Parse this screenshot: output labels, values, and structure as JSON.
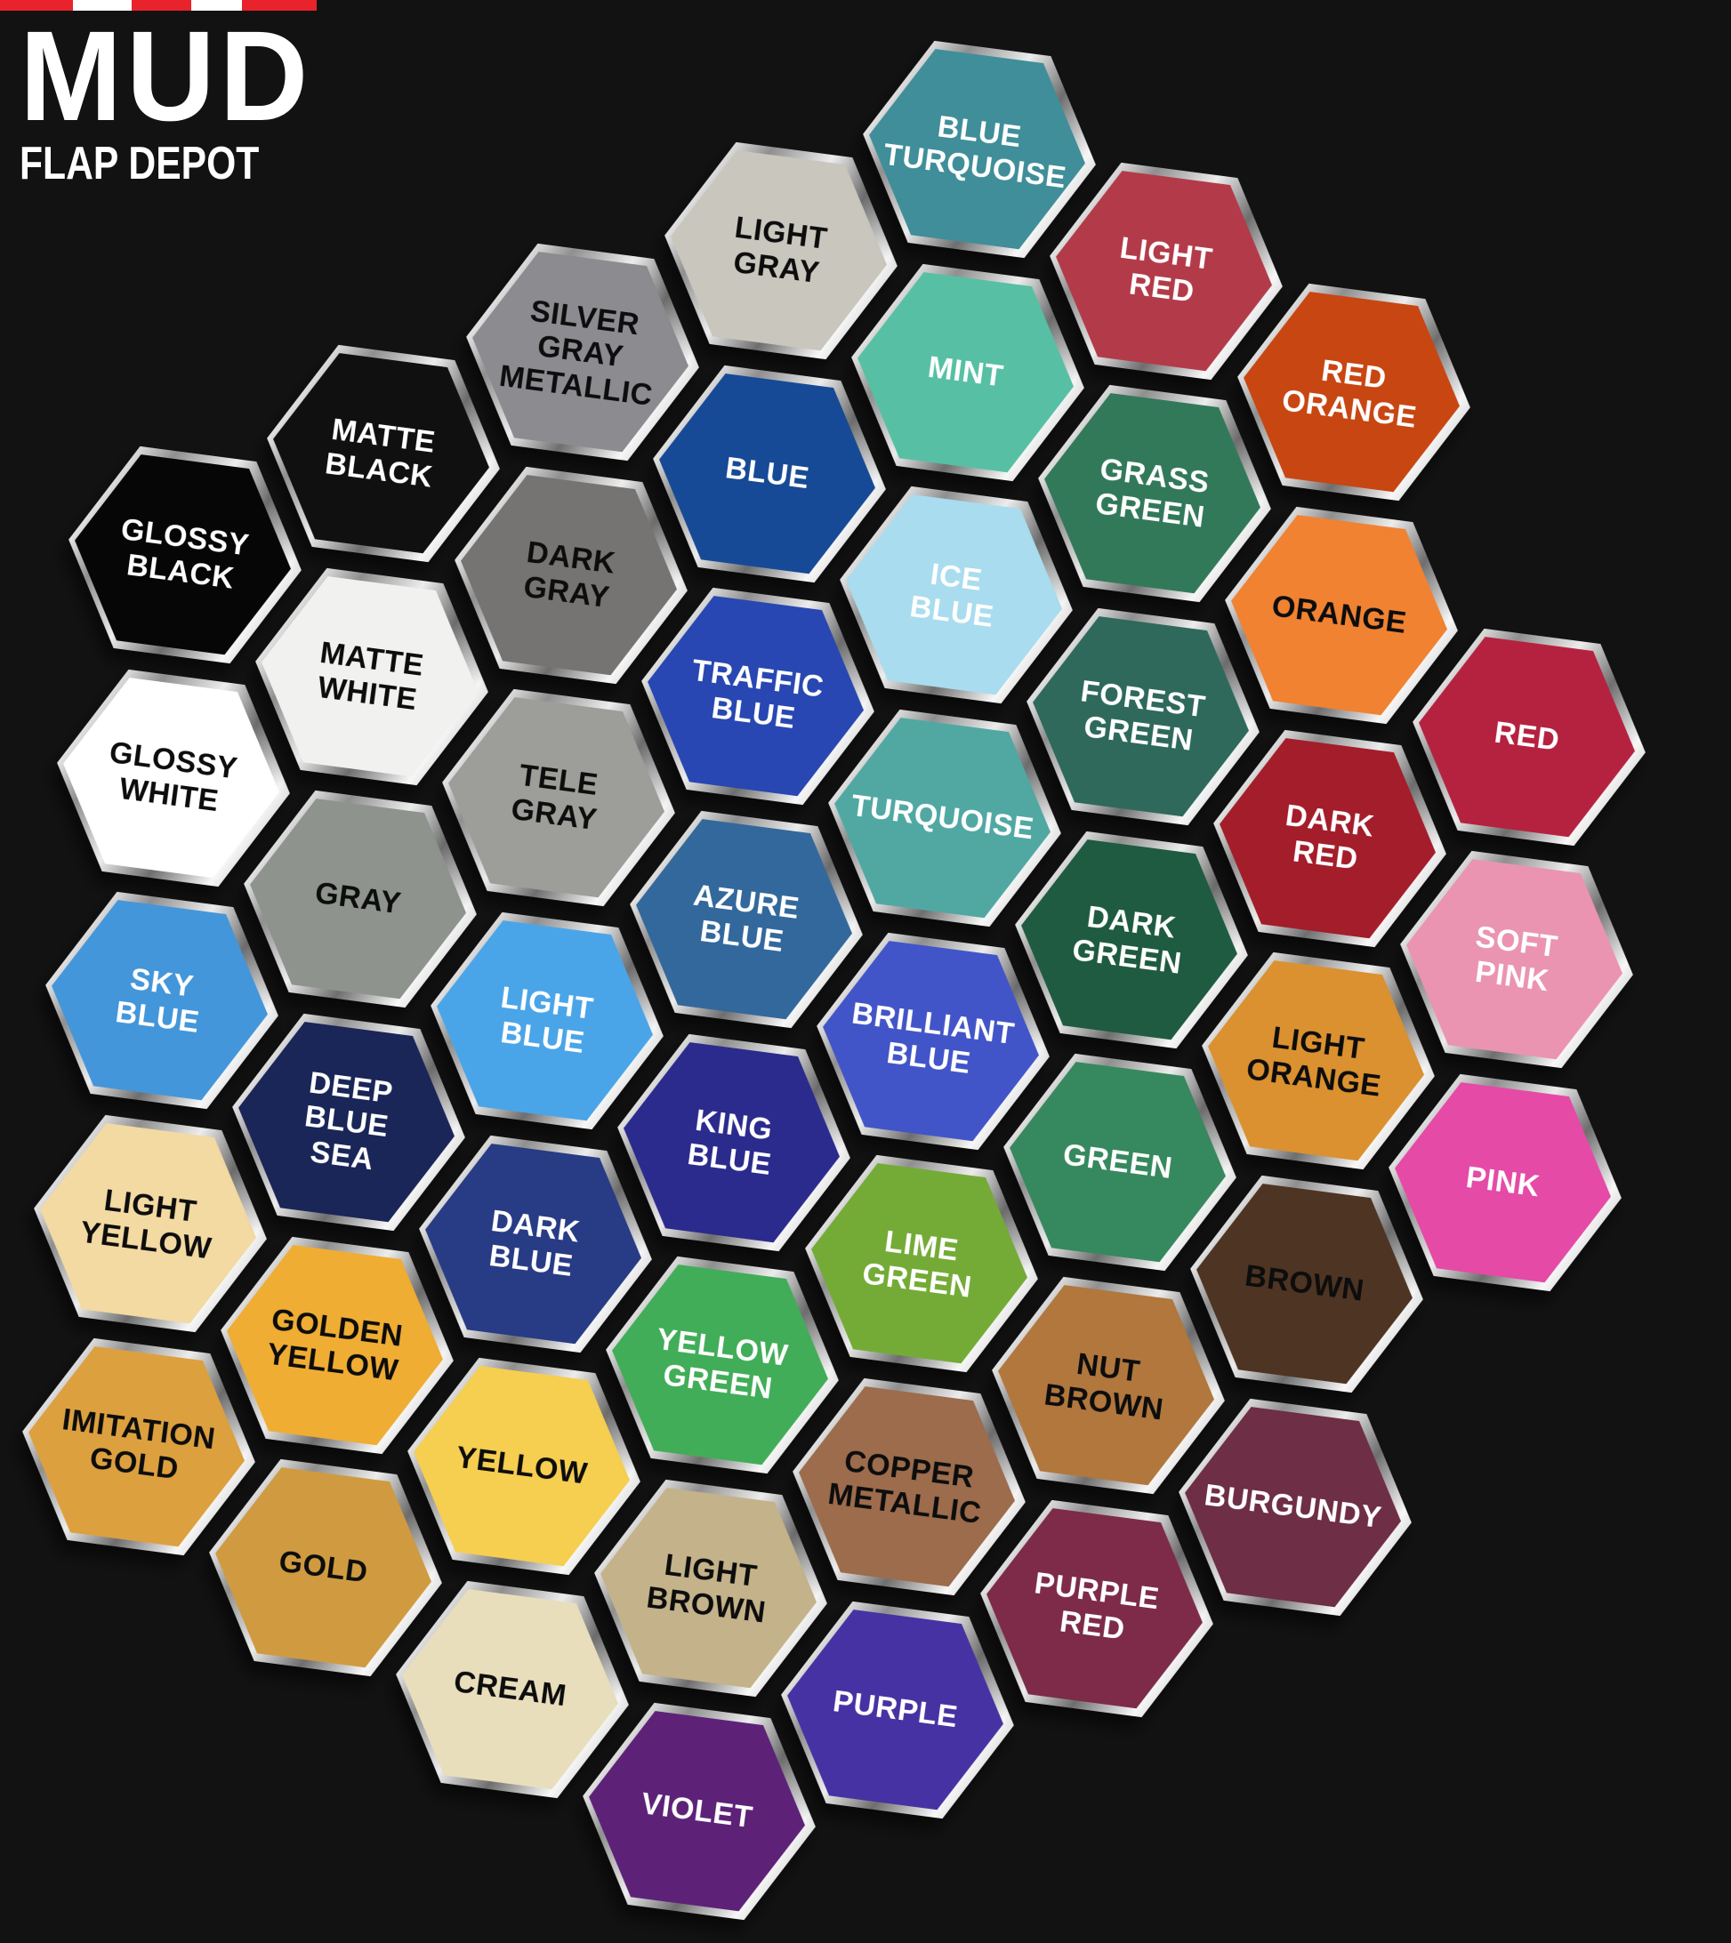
{
  "background": "#121212",
  "logo": {
    "title": "MUD",
    "subtitle": "FLAP DEPOT",
    "stripes": [
      {
        "color": "#e8232b",
        "width": 82
      },
      {
        "color": "#ffffff",
        "width": 66
      },
      {
        "color": "#e8232b",
        "width": 67
      },
      {
        "color": "#ffffff",
        "width": 57
      },
      {
        "color": "#e8232b",
        "width": 84
      }
    ]
  },
  "board": {
    "swatches": [
      {
        "name": "glossy-black",
        "label": "GLOSSY\nBLACK",
        "color": "#060606",
        "text_color": "#ffffff",
        "q": -3,
        "r": 3
      },
      {
        "name": "glossy-white",
        "label": "GLOSSY\nWHITE",
        "color": "#ffffff",
        "text_color": "#0d0d0d",
        "q": -3,
        "r": 4
      },
      {
        "name": "sky-blue",
        "label": "SKY\nBLUE",
        "color": "#4496da",
        "text_color": "#ffffff",
        "q": -3,
        "r": 5
      },
      {
        "name": "light-yellow",
        "label": "LIGHT\nYELLOW",
        "color": "#f3d9a2",
        "text_color": "#0d0d0d",
        "q": -3,
        "r": 6
      },
      {
        "name": "imitation-gold",
        "label": "IMITATION\nGOLD",
        "color": "#dda03f",
        "text_color": "#0d0d0d",
        "q": -3,
        "r": 7
      },
      {
        "name": "matte-black",
        "label": "MATTE\nBLACK",
        "color": "#101010",
        "text_color": "#ffffff",
        "q": -2,
        "r": 2
      },
      {
        "name": "matte-white",
        "label": "MATTE\nWHITE",
        "color": "#f1f1ef",
        "text_color": "#0d0d0d",
        "q": -2,
        "r": 3
      },
      {
        "name": "gray",
        "label": "GRAY",
        "color": "#8e938e",
        "text_color": "#0d0d0d",
        "q": -2,
        "r": 4
      },
      {
        "name": "deep-blue-sea",
        "label": "DEEP\nBLUE\nSEA",
        "color": "#1a2558",
        "text_color": "#ffffff",
        "q": -2,
        "r": 5
      },
      {
        "name": "golden-yellow",
        "label": "GOLDEN\nYELLOW",
        "color": "#f0ad33",
        "text_color": "#0d0d0d",
        "q": -2,
        "r": 6
      },
      {
        "name": "gold",
        "label": "GOLD",
        "color": "#d09b40",
        "text_color": "#0d0d0d",
        "q": -2,
        "r": 7
      },
      {
        "name": "silver-gray-metallic",
        "label": "SILVER\nGRAY\nMETALLIC",
        "color": "#8b8b90",
        "text_color": "#0d0d0d",
        "q": -1,
        "r": 1
      },
      {
        "name": "dark-gray",
        "label": "DARK\nGRAY",
        "color": "#757472",
        "text_color": "#0d0d0d",
        "q": -1,
        "r": 2
      },
      {
        "name": "tele-gray",
        "label": "TELE\nGRAY",
        "color": "#9d9d99",
        "text_color": "#0d0d0d",
        "q": -1,
        "r": 3
      },
      {
        "name": "light-blue",
        "label": "LIGHT\nBLUE",
        "color": "#4aa5e8",
        "text_color": "#ffffff",
        "q": -1,
        "r": 4
      },
      {
        "name": "dark-blue",
        "label": "DARK\nBLUE",
        "color": "#283b85",
        "text_color": "#ffffff",
        "q": -1,
        "r": 5
      },
      {
        "name": "yellow",
        "label": "YELLOW",
        "color": "#f6ce50",
        "text_color": "#0d0d0d",
        "q": -1,
        "r": 6
      },
      {
        "name": "cream",
        "label": "CREAM",
        "color": "#e9debc",
        "text_color": "#0d0d0d",
        "q": -1,
        "r": 7
      },
      {
        "name": "light-gray",
        "label": "LIGHT\nGRAY",
        "color": "#c9c6bd",
        "text_color": "#0d0d0d",
        "q": 0,
        "r": 0
      },
      {
        "name": "blue",
        "label": "BLUE",
        "color": "#174a96",
        "text_color": "#ffffff",
        "q": 0,
        "r": 1
      },
      {
        "name": "traffic-blue",
        "label": "TRAFFIC\nBLUE",
        "color": "#2847b2",
        "text_color": "#ffffff",
        "q": 0,
        "r": 2
      },
      {
        "name": "azure-blue",
        "label": "AZURE\nBLUE",
        "color": "#33689c",
        "text_color": "#ffffff",
        "q": 0,
        "r": 3
      },
      {
        "name": "king-blue",
        "label": "KING\nBLUE",
        "color": "#2b2b8e",
        "text_color": "#ffffff",
        "q": 0,
        "r": 4
      },
      {
        "name": "yellow-green",
        "label": "YELLOW\nGREEN",
        "color": "#42ad58",
        "text_color": "#ffffff",
        "q": 0,
        "r": 5
      },
      {
        "name": "light-brown",
        "label": "LIGHT\nBROWN",
        "color": "#c4b28a",
        "text_color": "#0d0d0d",
        "q": 0,
        "r": 6
      },
      {
        "name": "violet",
        "label": "VIOLET",
        "color": "#5d2278",
        "text_color": "#ffffff",
        "q": 0,
        "r": 7
      },
      {
        "name": "blue-turquoise",
        "label": "BLUE\nTURQUOISE",
        "color": "#3f8e99",
        "text_color": "#ffffff",
        "q": 1,
        "r": -1
      },
      {
        "name": "mint",
        "label": "MINT",
        "color": "#57c0a4",
        "text_color": "#ffffff",
        "q": 1,
        "r": 0
      },
      {
        "name": "ice-blue",
        "label": "ICE\nBLUE",
        "color": "#a9dcee",
        "text_color": "#ffffff",
        "q": 1,
        "r": 1
      },
      {
        "name": "turquoise",
        "label": "TURQUOISE",
        "color": "#51a8a3",
        "text_color": "#ffffff",
        "q": 1,
        "r": 2
      },
      {
        "name": "brilliant-blue",
        "label": "BRILLIANT\nBLUE",
        "color": "#4255c8",
        "text_color": "#ffffff",
        "q": 1,
        "r": 3
      },
      {
        "name": "lime-green",
        "label": "LIME\nGREEN",
        "color": "#74ab36",
        "text_color": "#ffffff",
        "q": 1,
        "r": 4
      },
      {
        "name": "copper-metallic",
        "label": "COPPER\nMETALLIC",
        "color": "#9c6c4c",
        "text_color": "#0d0d0d",
        "q": 1,
        "r": 5
      },
      {
        "name": "purple",
        "label": "PURPLE",
        "color": "#4732a4",
        "text_color": "#ffffff",
        "q": 1,
        "r": 6
      },
      {
        "name": "light-red",
        "label": "LIGHT\nRED",
        "color": "#b33b49",
        "text_color": "#ffffff",
        "q": 2,
        "r": -1
      },
      {
        "name": "grass-green",
        "label": "GRASS\nGREEN",
        "color": "#32795a",
        "text_color": "#ffffff",
        "q": 2,
        "r": 0
      },
      {
        "name": "forest-green",
        "label": "FOREST\nGREEN",
        "color": "#2e695c",
        "text_color": "#ffffff",
        "q": 2,
        "r": 1
      },
      {
        "name": "dark-green",
        "label": "DARK\nGREEN",
        "color": "#1e5b40",
        "text_color": "#ffffff",
        "q": 2,
        "r": 2
      },
      {
        "name": "green",
        "label": "GREEN",
        "color": "#36895e",
        "text_color": "#ffffff",
        "q": 2,
        "r": 3
      },
      {
        "name": "nut-brown",
        "label": "NUT\nBROWN",
        "color": "#b1773d",
        "text_color": "#0d0d0d",
        "q": 2,
        "r": 4
      },
      {
        "name": "purple-red",
        "label": "PURPLE\nRED",
        "color": "#7d2b49",
        "text_color": "#ffffff",
        "q": 2,
        "r": 5
      },
      {
        "name": "red-orange",
        "label": "RED\nORANGE",
        "color": "#c84612",
        "text_color": "#ffffff",
        "q": 3,
        "r": -1
      },
      {
        "name": "orange",
        "label": "ORANGE",
        "color": "#f08232",
        "text_color": "#0d0d0d",
        "q": 3,
        "r": 0
      },
      {
        "name": "dark-red",
        "label": "DARK\nRED",
        "color": "#a41d2a",
        "text_color": "#ffffff",
        "q": 3,
        "r": 1
      },
      {
        "name": "light-orange",
        "label": "LIGHT\nORANGE",
        "color": "#db9130",
        "text_color": "#0d0d0d",
        "q": 3,
        "r": 2
      },
      {
        "name": "brown",
        "label": "BROWN",
        "color": "#4e3423",
        "text_color": "#0d0d0d",
        "q": 3,
        "r": 3
      },
      {
        "name": "burgundy",
        "label": "BURGUNDY",
        "color": "#6e2e45",
        "text_color": "#ffffff",
        "q": 3,
        "r": 4
      },
      {
        "name": "red",
        "label": "RED",
        "color": "#b52240",
        "text_color": "#ffffff",
        "q": 4,
        "r": 0
      },
      {
        "name": "soft-pink",
        "label": "SOFT\nPINK",
        "color": "#ea94b2",
        "text_color": "#ffffff",
        "q": 4,
        "r": 1
      },
      {
        "name": "pink",
        "label": "PINK",
        "color": "#e54aa6",
        "text_color": "#ffffff",
        "q": 4,
        "r": 2
      }
    ]
  }
}
